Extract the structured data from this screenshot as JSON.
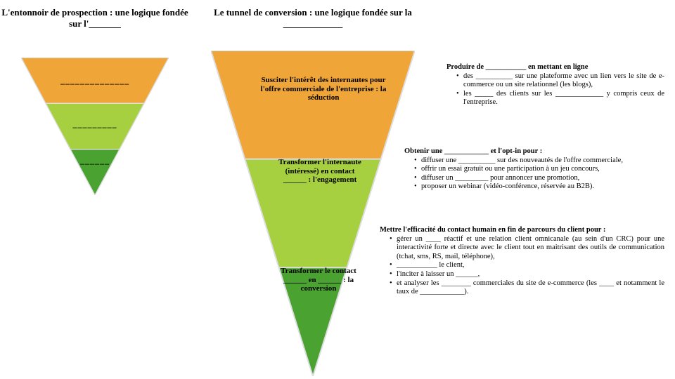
{
  "colors": {
    "band1": "#f0a538",
    "band2": "#a6d03f",
    "band3": "#4aa230",
    "stroke": "#dddddd"
  },
  "headers": {
    "left": "L'entonnoir de prospection : une logique fondée sur l'_______",
    "right": "Le tunnel de conversion : une logique fondée sur la _____________"
  },
  "small_blanks": {
    "b1": "______________",
    "b2": "_________",
    "b3": "______"
  },
  "big_texts": {
    "t1": "Susciter l'intérêt des internautes pour l'offre commerciale de l'entreprise : la séduction",
    "t2": "Transformer l'internaute (intéressé) en contact ______ : l'engagement",
    "t3": "Transformer le contact ______ en ______ : la conversion"
  },
  "descs": {
    "d1": {
      "lead": "Produire de ___________ en mettant en ligne",
      "bullets": [
        "des __________ sur une plateforme avec un lien vers le site de e-commerce ou un site relationnel (les blogs),",
        "les _____ des clients sur les _____________ y compris ceux de l'entreprise."
      ]
    },
    "d2": {
      "lead": "Obtenir une ____________ et l'opt-in pour :",
      "bullets": [
        "diffuser une __________ sur des nouveautés de l'offre commerciale,",
        "offrir un essai gratuit ou une participation à un jeu concours,",
        "diffuser un _________ pour annoncer une promotion,",
        "proposer un webinar (vidéo-conférence, réservée au B2B)."
      ]
    },
    "d3": {
      "lead": "Mettre l'efficacité du contact humain en fin de parcours du client pour :",
      "bullets": [
        "gérer un ____ réactif et une relation client omnicanale (au sein d'un CRC) pour une interactivité forte et directe avec le client tout en maitrisant des outils de communication (tchat, sms, RS, mail, téléphone),",
        "___________ le client,",
        "l'inciter à laisser un ______,",
        "et analyser les ________ commerciales du site de e-commerce (les ____ et notamment le taux de ____________)."
      ]
    }
  }
}
